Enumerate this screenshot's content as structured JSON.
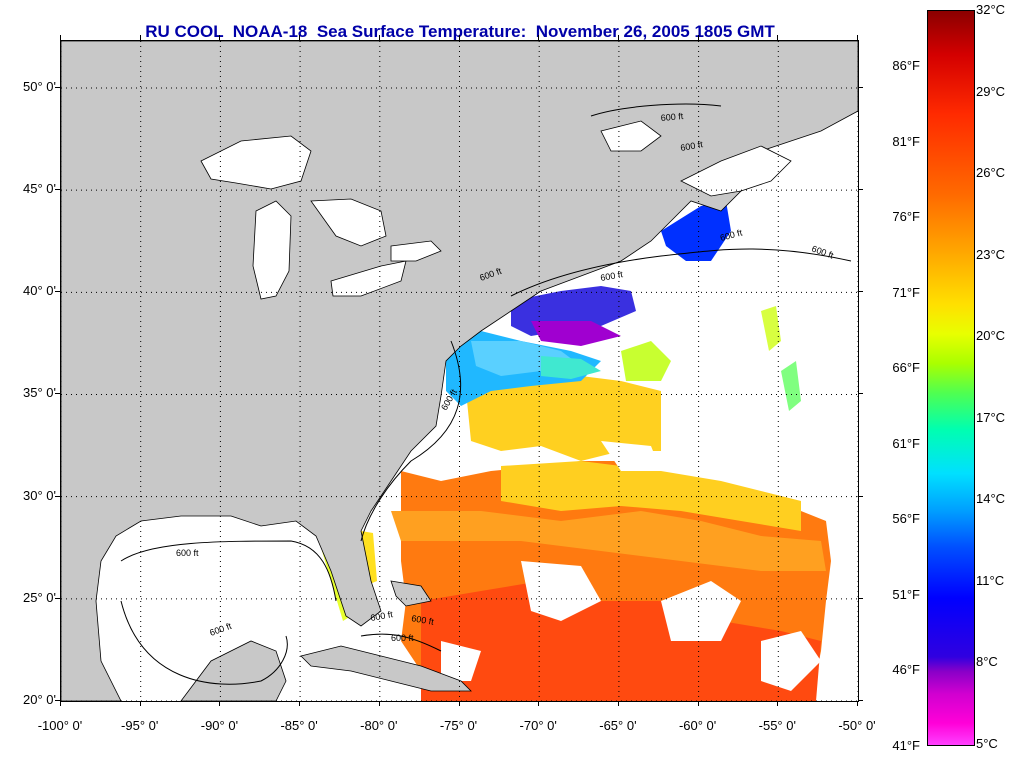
{
  "title": "RU COOL  NOAA-18  Sea Surface Temperature:  November 26, 2005 1805 GMT",
  "map": {
    "lat_labels": [
      "50° 0'",
      "45° 0'",
      "40° 0'",
      "35° 0'",
      "30° 0'",
      "25° 0'",
      "20° 0'"
    ],
    "lon_labels": [
      "-100° 0'",
      "-95° 0'",
      "-90° 0'",
      "-85° 0'",
      "-80° 0'",
      "-75° 0'",
      "-70° 0'",
      "-65° 0'",
      "-60° 0'",
      "-55° 0'",
      "-50° 0'"
    ],
    "contour_labels": [
      "600 ft",
      "600 ft",
      "600 ft",
      "600 ft",
      "600 ft",
      "600 ft",
      "600 ft",
      "600 ft",
      "600 ft",
      "600 ft",
      "600 ft",
      "600 ft"
    ],
    "colors": {
      "land": "#c8c8c8",
      "ocean_nodata": "#ffffff",
      "grid": "#000000"
    }
  },
  "colorbar": {
    "fahrenheit": [
      "86°F",
      "81°F",
      "76°F",
      "71°F",
      "66°F",
      "61°F",
      "56°F",
      "51°F",
      "46°F",
      "41°F"
    ],
    "celsius": [
      "32°C",
      "29°C",
      "26°C",
      "23°C",
      "20°C",
      "17°C",
      "14°C",
      "11°C",
      "8°C",
      "5°C"
    ]
  }
}
